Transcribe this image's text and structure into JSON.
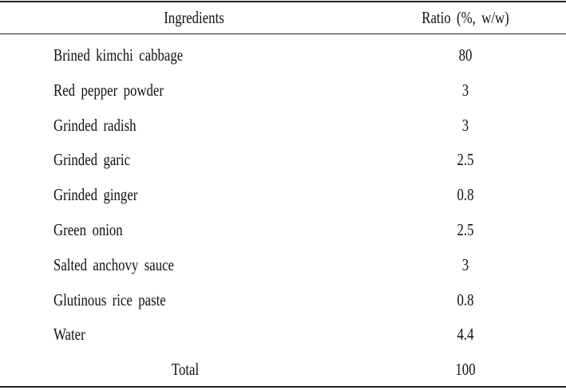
{
  "table": {
    "header": [
      "Ingredients",
      "Ratio (%, w/w)"
    ],
    "rows": [
      [
        "Brined kimchi cabbage",
        80
      ],
      [
        "Red pepper powder",
        3
      ],
      [
        "Grinded radish",
        3
      ],
      [
        "Grinded garic",
        2.5
      ],
      [
        "Grinded ginger",
        0.8
      ],
      [
        "Green onion",
        2.5
      ],
      [
        "Salted anchovy sauce",
        3
      ],
      [
        "Glutinous rice paste",
        0.8
      ],
      [
        "Water",
        4.4
      ]
    ],
    "total": [
      "Total",
      100
    ]
  }
}
